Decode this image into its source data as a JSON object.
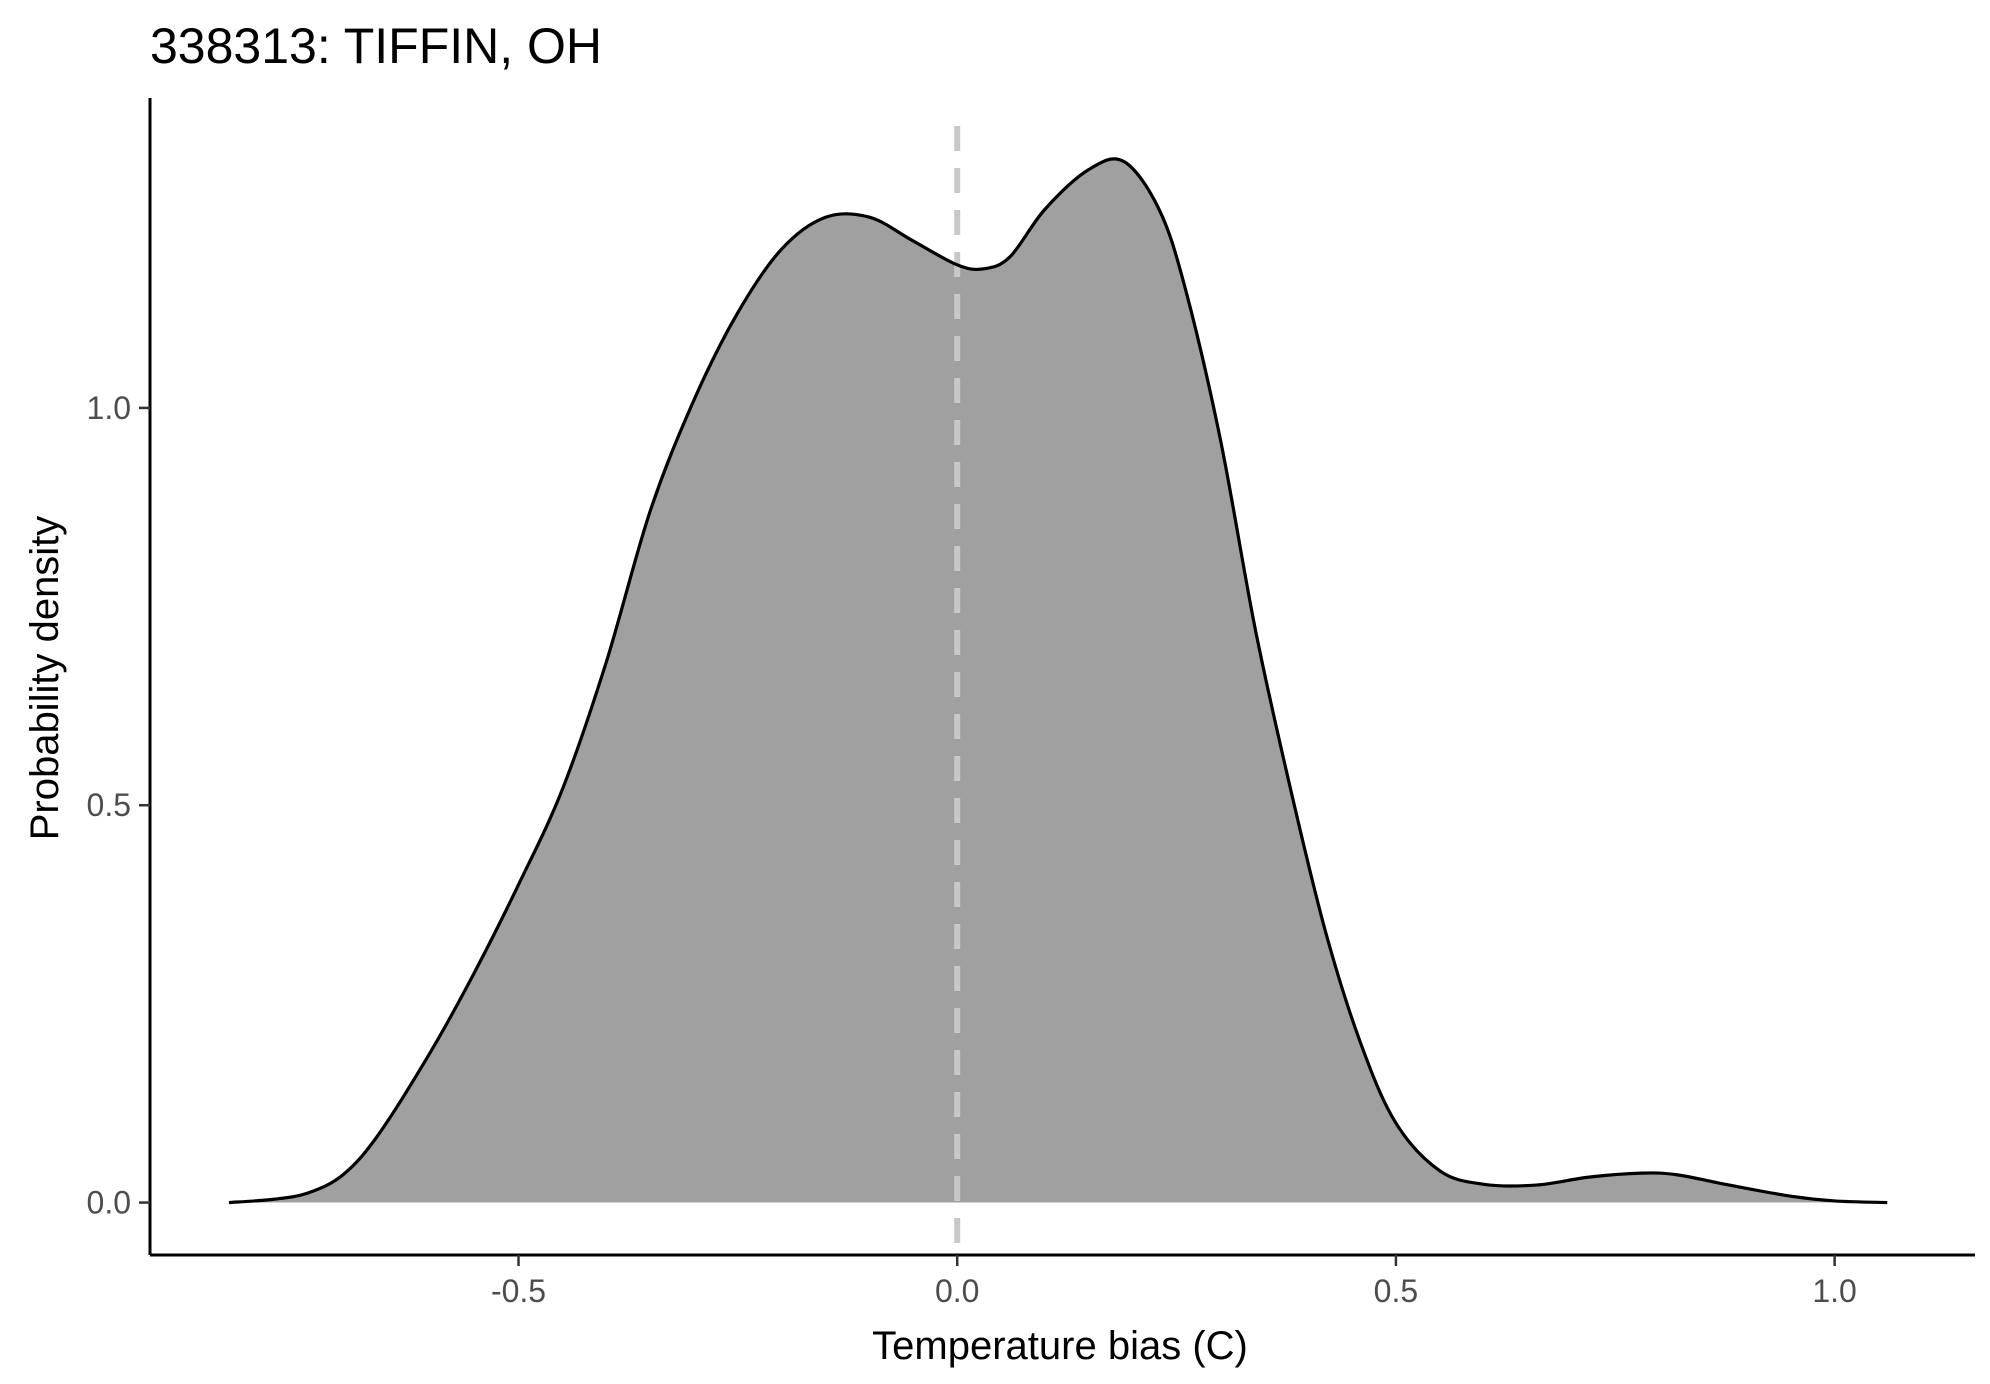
{
  "chart_data": {
    "type": "area",
    "title": "338313: TIFFIN, OH",
    "xlabel": "Temperature bias (C)",
    "ylabel": "Probability density",
    "xlim": [
      -0.92,
      1.16
    ],
    "ylim": [
      -0.066,
      1.39
    ],
    "x_ticks": [
      -0.5,
      0.0,
      0.5,
      1.0
    ],
    "x_tick_labels": [
      "-0.5",
      "0.0",
      "0.5",
      "1.0"
    ],
    "y_ticks": [
      0.0,
      0.5,
      1.0
    ],
    "y_tick_labels": [
      "0.0",
      "0.5",
      "1.0"
    ],
    "grid": false,
    "reference_line": {
      "x": 0.0,
      "style": "dashed",
      "color": "#c8c8c8"
    },
    "fill_color": "#a0a0a0",
    "line_color": "#000000",
    "x": [
      -0.83,
      -0.78,
      -0.74,
      -0.7,
      -0.66,
      -0.6,
      -0.55,
      -0.5,
      -0.45,
      -0.4,
      -0.35,
      -0.3,
      -0.25,
      -0.2,
      -0.15,
      -0.1,
      -0.05,
      0.0,
      0.03,
      0.06,
      0.1,
      0.15,
      0.19,
      0.23,
      0.26,
      0.3,
      0.34,
      0.38,
      0.42,
      0.46,
      0.5,
      0.55,
      0.6,
      0.66,
      0.72,
      0.78,
      0.82,
      0.88,
      0.95,
      1.0,
      1.06
    ],
    "y": [
      0.0,
      0.004,
      0.012,
      0.035,
      0.085,
      0.19,
      0.29,
      0.4,
      0.52,
      0.68,
      0.87,
      1.01,
      1.12,
      1.2,
      1.24,
      1.24,
      1.21,
      1.18,
      1.175,
      1.19,
      1.25,
      1.3,
      1.31,
      1.25,
      1.15,
      0.96,
      0.72,
      0.52,
      0.34,
      0.2,
      0.1,
      0.04,
      0.023,
      0.022,
      0.032,
      0.037,
      0.035,
      0.022,
      0.008,
      0.002,
      0.0
    ]
  }
}
